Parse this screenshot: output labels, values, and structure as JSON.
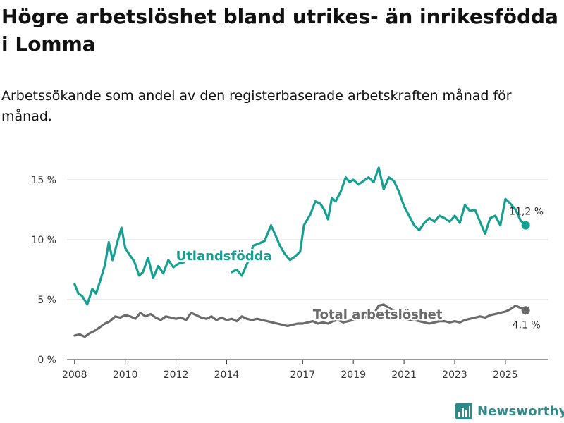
{
  "header": {
    "title": "Högre arbetslöshet bland utrikes- än inrikesfödda i Lomma",
    "subtitle": "Arbetssökande som andel av den registerbaserade arbetskraften månad för månad."
  },
  "brand": {
    "name": "Newsworthy",
    "icon": "bar-chart-logo-icon",
    "color": "#2f8a8a"
  },
  "chart_data": {
    "type": "line",
    "title": "Högre arbetslöshet bland utrikes- än inrikesfödda i Lomma",
    "subtitle": "Arbetssökande som andel av den registerbaserade arbetskraften månad för månad.",
    "xlabel": "",
    "ylabel": "",
    "ylim": [
      0,
      16
    ],
    "xlim": [
      2007.7,
      2026.7
    ],
    "y_ticks": [
      0,
      5,
      10,
      15
    ],
    "y_tick_labels": [
      "0 %",
      "5 %",
      "10 %",
      "15 %"
    ],
    "x_ticks": [
      2008,
      2010,
      2012,
      2014,
      2017,
      2019,
      2021,
      2023,
      2025
    ],
    "x_tick_labels": [
      "2008",
      "2010",
      "2012",
      "2014",
      "2017",
      "2019",
      "2021",
      "2023",
      "2025"
    ],
    "grid": true,
    "series": [
      {
        "name": "Utlandsfödda",
        "color": "#17a091",
        "end_label": "11,2 %",
        "x": [
          2008.0,
          2008.15,
          2008.3,
          2008.5,
          2008.7,
          2008.85,
          2009.0,
          2009.2,
          2009.35,
          2009.5,
          2009.7,
          2009.85,
          2010.0,
          2010.15,
          2010.35,
          2010.55,
          2010.7,
          2010.9,
          2011.1,
          2011.3,
          2011.5,
          2011.7,
          2011.9,
          2012.1,
          2012.3,
          null,
          2014.2,
          2014.4,
          2014.6,
          2014.85,
          2015.05,
          2015.3,
          2015.5,
          2015.75,
          2015.9,
          2016.1,
          2016.3,
          2016.5,
          2016.7,
          2016.9,
          2017.05,
          2017.3,
          2017.5,
          2017.7,
          2017.85,
          2018.0,
          2018.15,
          2018.3,
          2018.5,
          2018.7,
          2018.85,
          2019.0,
          2019.2,
          2019.4,
          2019.6,
          2019.8,
          2020.0,
          2020.2,
          2020.4,
          2020.6,
          2020.8,
          2021.0,
          2021.2,
          2021.4,
          2021.6,
          2021.8,
          2022.0,
          2022.2,
          2022.4,
          2022.6,
          2022.8,
          2023.0,
          2023.2,
          2023.4,
          2023.6,
          2023.8,
          2024.0,
          2024.2,
          2024.4,
          2024.6,
          2024.8,
          2025.0,
          2025.2,
          2025.4,
          2025.6,
          2025.8
        ],
        "y": [
          6.3,
          5.5,
          5.3,
          4.6,
          5.9,
          5.5,
          6.5,
          7.9,
          9.8,
          8.3,
          9.9,
          11.0,
          9.3,
          8.8,
          8.2,
          7.0,
          7.3,
          8.5,
          6.8,
          7.8,
          7.2,
          8.3,
          7.7,
          8.0,
          8.1,
          null,
          7.3,
          7.5,
          7.0,
          8.2,
          9.5,
          9.7,
          9.9,
          11.2,
          10.5,
          9.5,
          8.8,
          8.3,
          8.6,
          9.0,
          11.2,
          12.1,
          13.2,
          13.0,
          12.5,
          11.7,
          13.5,
          13.2,
          14.0,
          15.2,
          14.8,
          15.0,
          14.6,
          14.9,
          15.2,
          14.8,
          16.0,
          14.2,
          15.2,
          14.9,
          14.0,
          12.8,
          12.0,
          11.2,
          10.8,
          11.4,
          11.8,
          11.5,
          12.0,
          11.8,
          11.5,
          12.0,
          11.4,
          12.9,
          12.4,
          12.5,
          11.5,
          10.5,
          11.8,
          12.0,
          11.2,
          13.4,
          13.0,
          12.5,
          11.6,
          11.2
        ]
      },
      {
        "name": "Total arbetslöshet",
        "color": "#6b6b6b",
        "end_label": "4,1 %",
        "x": [
          2008.0,
          2008.2,
          2008.4,
          2008.6,
          2008.8,
          2009.0,
          2009.2,
          2009.4,
          2009.6,
          2009.8,
          2010.0,
          2010.2,
          2010.4,
          2010.6,
          2010.8,
          2011.0,
          2011.2,
          2011.4,
          2011.6,
          2011.8,
          2012.0,
          2012.2,
          2012.4,
          2012.6,
          2012.8,
          2013.0,
          2013.2,
          2013.4,
          2013.6,
          2013.8,
          2014.0,
          2014.2,
          2014.4,
          2014.6,
          2014.8,
          2015.0,
          2015.2,
          2015.4,
          2015.6,
          2015.8,
          2016.0,
          2016.2,
          2016.4,
          2016.6,
          2016.8,
          2017.0,
          2017.2,
          2017.4,
          2017.6,
          2017.8,
          2018.0,
          2018.2,
          2018.4,
          2018.6,
          2018.8,
          2019.0,
          2019.2,
          2019.4,
          2019.6,
          2019.8,
          2020.0,
          2020.2,
          2020.4,
          2020.6,
          2020.8,
          2021.0,
          2021.2,
          2021.4,
          2021.6,
          2021.8,
          2022.0,
          2022.2,
          2022.4,
          2022.6,
          2022.8,
          2023.0,
          2023.2,
          2023.4,
          2023.6,
          2023.8,
          2024.0,
          2024.2,
          2024.4,
          2024.6,
          2024.8,
          2025.0,
          2025.2,
          2025.4,
          2025.6,
          2025.8
        ],
        "y": [
          2.0,
          2.1,
          1.9,
          2.2,
          2.4,
          2.7,
          3.0,
          3.2,
          3.6,
          3.5,
          3.7,
          3.6,
          3.4,
          3.9,
          3.6,
          3.8,
          3.5,
          3.3,
          3.6,
          3.5,
          3.4,
          3.5,
          3.3,
          3.9,
          3.7,
          3.5,
          3.4,
          3.6,
          3.3,
          3.5,
          3.3,
          3.4,
          3.2,
          3.6,
          3.4,
          3.3,
          3.4,
          3.3,
          3.2,
          3.1,
          3.0,
          2.9,
          2.8,
          2.9,
          3.0,
          3.0,
          3.1,
          3.2,
          3.0,
          3.1,
          3.0,
          3.2,
          3.3,
          3.1,
          3.2,
          3.3,
          3.4,
          3.5,
          3.6,
          3.8,
          4.5,
          4.6,
          4.3,
          4.1,
          3.6,
          3.4,
          3.3,
          3.3,
          3.2,
          3.1,
          3.0,
          3.1,
          3.2,
          3.2,
          3.1,
          3.2,
          3.1,
          3.3,
          3.4,
          3.5,
          3.6,
          3.5,
          3.7,
          3.8,
          3.9,
          4.0,
          4.2,
          4.5,
          4.3,
          4.1
        ]
      }
    ],
    "series_labels": [
      {
        "text": "Utlandsfödda",
        "series": "Utlandsfödda",
        "x": 2012.0,
        "y": 8.3
      },
      {
        "text": "Total arbetslöshet",
        "series": "Total arbetslöshet",
        "x": 2017.4,
        "y": 3.4
      }
    ]
  }
}
